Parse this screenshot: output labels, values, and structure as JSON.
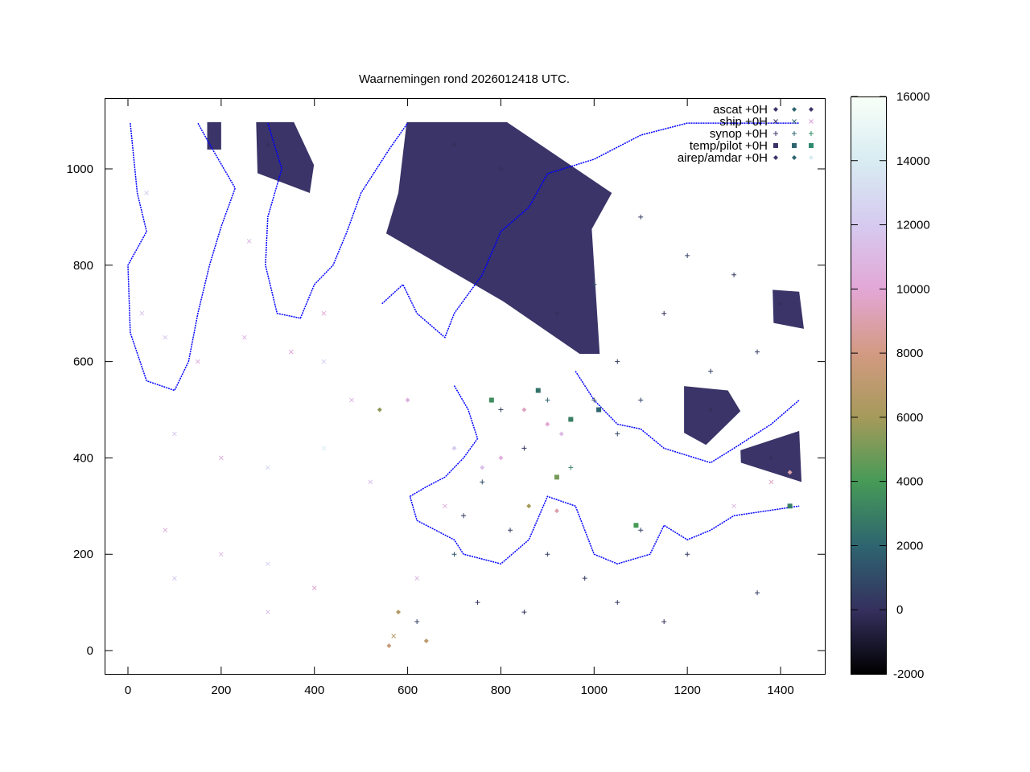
{
  "chart_data": {
    "type": "scatter",
    "title": "Waarnemingen rond 2026012418 UTC.",
    "xlabel": "",
    "ylabel": "",
    "xlim": [
      -50,
      1495
    ],
    "ylim": [
      -50,
      1145
    ],
    "xticks": [
      "0",
      "200",
      "400",
      "600",
      "800",
      "1000",
      "1200",
      "1400"
    ],
    "yticks": [
      "0",
      "200",
      "400",
      "600",
      "800",
      "1000"
    ],
    "grid": false,
    "legend_position": "top-right",
    "colorbar": {
      "range": [
        -2000,
        16000
      ],
      "ticks": [
        "-2000",
        "0",
        "2000",
        "4000",
        "6000",
        "8000",
        "10000",
        "12000",
        "14000",
        "16000"
      ],
      "palette": [
        {
          "value": -2000,
          "color": "#000000"
        },
        {
          "value": 0,
          "color": "#35305e"
        },
        {
          "value": 2000,
          "color": "#2e6470"
        },
        {
          "value": 4000,
          "color": "#469a57"
        },
        {
          "value": 6000,
          "color": "#a59a5a"
        },
        {
          "value": 8000,
          "color": "#d39a82"
        },
        {
          "value": 10000,
          "color": "#e3a7d6"
        },
        {
          "value": 12000,
          "color": "#d6caf0"
        },
        {
          "value": 14000,
          "color": "#d8ecf2"
        },
        {
          "value": 16000,
          "color": "#f8fff8"
        }
      ]
    },
    "coastline_color": "#0000ff",
    "coastline": [
      [
        [
          300,
          1095
        ],
        [
          330,
          1000
        ],
        [
          300,
          900
        ],
        [
          295,
          800
        ],
        [
          320,
          700
        ],
        [
          370,
          690
        ],
        [
          400,
          760
        ],
        [
          440,
          800
        ],
        [
          470,
          870
        ],
        [
          500,
          950
        ],
        [
          560,
          1040
        ],
        [
          600,
          1095
        ]
      ],
      [
        [
          5,
          1095
        ],
        [
          20,
          950
        ],
        [
          40,
          870
        ],
        [
          0,
          800
        ],
        [
          5,
          660
        ],
        [
          40,
          560
        ],
        [
          100,
          540
        ],
        [
          130,
          600
        ],
        [
          150,
          700
        ],
        [
          175,
          800
        ],
        [
          200,
          880
        ],
        [
          230,
          960
        ],
        [
          170,
          1060
        ],
        [
          150,
          1095
        ]
      ],
      [
        [
          545,
          720
        ],
        [
          590,
          760
        ],
        [
          620,
          700
        ],
        [
          680,
          650
        ],
        [
          700,
          700
        ],
        [
          760,
          780
        ],
        [
          800,
          870
        ],
        [
          860,
          920
        ],
        [
          900,
          990
        ],
        [
          1000,
          1020
        ],
        [
          1100,
          1070
        ],
        [
          1200,
          1095
        ],
        [
          1440,
          1095
        ]
      ],
      [
        [
          700,
          550
        ],
        [
          730,
          500
        ],
        [
          750,
          440
        ],
        [
          720,
          400
        ],
        [
          680,
          360
        ],
        [
          640,
          340
        ],
        [
          605,
          320
        ],
        [
          620,
          270
        ],
        [
          700,
          230
        ],
        [
          720,
          200
        ],
        [
          800,
          180
        ],
        [
          860,
          230
        ],
        [
          900,
          320
        ],
        [
          960,
          300
        ],
        [
          1000,
          200
        ],
        [
          1050,
          180
        ],
        [
          1120,
          200
        ],
        [
          1150,
          260
        ],
        [
          1200,
          230
        ],
        [
          1250,
          250
        ],
        [
          1300,
          280
        ],
        [
          1440,
          300
        ]
      ],
      [
        [
          960,
          580
        ],
        [
          1000,
          520
        ],
        [
          1050,
          470
        ],
        [
          1100,
          460
        ],
        [
          1150,
          420
        ],
        [
          1250,
          390
        ],
        [
          1300,
          420
        ],
        [
          1380,
          470
        ],
        [
          1440,
          520
        ]
      ]
    ],
    "ascat_swaths": [
      [
        [
          275,
          1097
        ],
        [
          356,
          1097
        ],
        [
          399,
          1008
        ],
        [
          390,
          950
        ],
        [
          278,
          991
        ]
      ],
      [
        [
          598,
          1097
        ],
        [
          813,
          1097
        ],
        [
          1038,
          950
        ],
        [
          995,
          875
        ],
        [
          1012,
          616
        ],
        [
          969,
          616
        ],
        [
          805,
          725
        ],
        [
          554,
          866
        ],
        [
          580,
          950
        ]
      ],
      [
        [
          1383,
          749
        ],
        [
          1440,
          745
        ],
        [
          1450,
          668
        ],
        [
          1385,
          680
        ]
      ],
      [
        [
          1193,
          549
        ],
        [
          1287,
          540
        ],
        [
          1314,
          497
        ],
        [
          1240,
          427
        ],
        [
          1193,
          452
        ]
      ],
      [
        [
          1314,
          416
        ],
        [
          1440,
          456
        ],
        [
          1445,
          350
        ],
        [
          1315,
          390
        ]
      ],
      [
        [
          895,
          760
        ],
        [
          930,
          740
        ],
        [
          940,
          650
        ],
        [
          900,
          680
        ]
      ],
      [
        [
          170,
          1097
        ],
        [
          200,
          1097
        ],
        [
          200,
          1040
        ],
        [
          170,
          1040
        ]
      ]
    ],
    "series": [
      {
        "name": "ascat +0H",
        "marker": "diamond",
        "points": [
          [
            300,
            1050,
            0
          ],
          [
            700,
            1050,
            0
          ],
          [
            800,
            1000,
            0
          ],
          [
            1400,
            720,
            0
          ],
          [
            1250,
            500,
            0
          ],
          [
            1380,
            400,
            0
          ],
          [
            920,
            700,
            0
          ]
        ]
      },
      {
        "name": "ship +0H",
        "marker": "x",
        "points": [
          [
            30,
            700,
            11500
          ],
          [
            80,
            650,
            12000
          ],
          [
            150,
            600,
            10500
          ],
          [
            250,
            650,
            11000
          ],
          [
            350,
            620,
            10000
          ],
          [
            420,
            600,
            12500
          ],
          [
            480,
            520,
            11000
          ],
          [
            100,
            450,
            12000
          ],
          [
            200,
            400,
            10500
          ],
          [
            300,
            380,
            13000
          ],
          [
            420,
            420,
            14000
          ],
          [
            520,
            350,
            11500
          ],
          [
            80,
            250,
            10500
          ],
          [
            200,
            200,
            11000
          ],
          [
            300,
            180,
            12500
          ],
          [
            400,
            130,
            10000
          ],
          [
            100,
            150,
            12000
          ],
          [
            570,
            30,
            7000
          ],
          [
            620,
            150,
            11000
          ],
          [
            680,
            300,
            10500
          ],
          [
            1300,
            300,
            11000
          ],
          [
            1380,
            350,
            9500
          ],
          [
            40,
            950,
            12000
          ],
          [
            260,
            850,
            11000
          ],
          [
            420,
            700,
            10000
          ],
          [
            300,
            80,
            11500
          ]
        ]
      },
      {
        "name": "synop +0H",
        "marker": "plus",
        "points": [
          [
            1100,
            900,
            500
          ],
          [
            1200,
            820,
            700
          ],
          [
            1300,
            780,
            300
          ],
          [
            1000,
            760,
            1000
          ],
          [
            1150,
            700,
            200
          ],
          [
            1350,
            620,
            500
          ],
          [
            1050,
            600,
            400
          ],
          [
            1250,
            580,
            600
          ],
          [
            950,
            480,
            800
          ],
          [
            1050,
            450,
            900
          ],
          [
            850,
            420,
            300
          ],
          [
            760,
            350,
            1200
          ],
          [
            820,
            250,
            500
          ],
          [
            900,
            200,
            600
          ],
          [
            980,
            150,
            300
          ],
          [
            750,
            100,
            200
          ],
          [
            850,
            80,
            100
          ],
          [
            1050,
            100,
            300
          ],
          [
            1150,
            60,
            200
          ],
          [
            1100,
            250,
            700
          ],
          [
            1200,
            200,
            400
          ],
          [
            1350,
            120,
            500
          ],
          [
            700,
            200,
            1500
          ],
          [
            800,
            500,
            600
          ],
          [
            900,
            520,
            2000
          ],
          [
            1000,
            520,
            1000
          ],
          [
            1100,
            520,
            800
          ],
          [
            950,
            380,
            3000
          ],
          [
            720,
            280,
            400
          ],
          [
            620,
            60,
            600
          ]
        ]
      },
      {
        "name": "temp/pilot +0H",
        "marker": "square",
        "points": [
          [
            880,
            540,
            2500
          ],
          [
            950,
            480,
            3000
          ],
          [
            1010,
            500,
            2000
          ],
          [
            1090,
            260,
            4000
          ],
          [
            920,
            360,
            5000
          ],
          [
            780,
            520,
            3500
          ],
          [
            1420,
            300,
            3000
          ]
        ]
      },
      {
        "name": "airep/amdar +0H",
        "marker": "diamond",
        "points": [
          [
            850,
            500,
            9500
          ],
          [
            900,
            470,
            10000
          ],
          [
            930,
            450,
            11000
          ],
          [
            800,
            400,
            10500
          ],
          [
            760,
            380,
            11500
          ],
          [
            700,
            420,
            12000
          ],
          [
            860,
            300,
            6000
          ],
          [
            920,
            290,
            9000
          ],
          [
            580,
            80,
            6500
          ],
          [
            640,
            20,
            7000
          ],
          [
            560,
            10,
            7500
          ],
          [
            1420,
            370,
            9000
          ],
          [
            540,
            500,
            5500
          ],
          [
            600,
            520,
            10500
          ]
        ]
      }
    ]
  }
}
